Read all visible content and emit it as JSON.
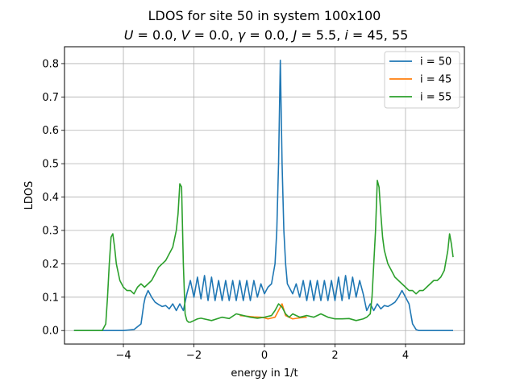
{
  "chart_data": {
    "type": "line",
    "title_line1": "LDOS for site 50 in system 100x100",
    "title_line2_parts": {
      "u_sym": "U",
      "u_val": " = 0.0, ",
      "v_sym": "V",
      "v_val": " = 0.0, ",
      "g_sym": "γ",
      "g_val": " = 0.0, ",
      "j_sym": "J",
      "j_val": " = 5.5, ",
      "i_sym": "i",
      "i_val": " = 45, 55"
    },
    "xlabel": "energy in 1/t",
    "ylabel": "LDOS",
    "xlim": [
      -5.67,
      5.67
    ],
    "ylim": [
      -0.0405,
      0.8505
    ],
    "xticks": [
      -4,
      -2,
      0,
      2,
      4
    ],
    "xtick_labels": [
      "−4",
      "−2",
      "0",
      "2",
      "4"
    ],
    "yticks": [
      0.0,
      0.1,
      0.2,
      0.3,
      0.4,
      0.5,
      0.6,
      0.7,
      0.8
    ],
    "ytick_labels": [
      "0.0",
      "0.1",
      "0.2",
      "0.3",
      "0.4",
      "0.5",
      "0.6",
      "0.7",
      "0.8"
    ],
    "grid": true,
    "legend_position": "top-right",
    "colors": {
      "i50": "#1f77b4",
      "i45": "#ff7f0e",
      "i55": "#2ca02c"
    },
    "series": [
      {
        "name": "i = 50",
        "color": "#1f77b4",
        "x": [
          -5.4,
          -4.0,
          -3.7,
          -3.5,
          -3.42,
          -3.38,
          -3.3,
          -3.2,
          -3.1,
          -3.0,
          -2.9,
          -2.8,
          -2.7,
          -2.6,
          -2.5,
          -2.4,
          -2.3,
          -2.2,
          -2.1,
          -2.0,
          -1.9,
          -1.8,
          -1.7,
          -1.6,
          -1.5,
          -1.4,
          -1.3,
          -1.2,
          -1.1,
          -1.0,
          -0.9,
          -0.8,
          -0.7,
          -0.6,
          -0.5,
          -0.4,
          -0.3,
          -0.2,
          -0.1,
          0.0,
          0.1,
          0.2,
          0.3,
          0.35,
          0.4,
          0.45,
          0.5,
          0.55,
          0.6,
          0.65,
          0.7,
          0.8,
          0.9,
          1.0,
          1.1,
          1.2,
          1.3,
          1.4,
          1.5,
          1.6,
          1.7,
          1.8,
          1.9,
          2.0,
          2.1,
          2.2,
          2.3,
          2.4,
          2.5,
          2.6,
          2.7,
          2.8,
          2.9,
          3.0,
          3.1,
          3.2,
          3.3,
          3.4,
          3.5,
          3.6,
          3.7,
          3.8,
          3.9,
          4.0,
          4.1,
          4.2,
          4.3,
          4.38,
          4.42,
          4.5,
          4.7,
          5.35
        ],
        "y": [
          0.0,
          0.0,
          0.003,
          0.02,
          0.08,
          0.1,
          0.12,
          0.1,
          0.085,
          0.078,
          0.072,
          0.075,
          0.065,
          0.08,
          0.06,
          0.08,
          0.06,
          0.11,
          0.15,
          0.1,
          0.16,
          0.095,
          0.165,
          0.09,
          0.16,
          0.09,
          0.15,
          0.09,
          0.15,
          0.09,
          0.15,
          0.09,
          0.15,
          0.09,
          0.15,
          0.09,
          0.15,
          0.1,
          0.14,
          0.11,
          0.13,
          0.14,
          0.2,
          0.3,
          0.5,
          0.81,
          0.5,
          0.3,
          0.2,
          0.14,
          0.13,
          0.11,
          0.14,
          0.1,
          0.15,
          0.09,
          0.15,
          0.09,
          0.15,
          0.09,
          0.15,
          0.09,
          0.15,
          0.09,
          0.16,
          0.09,
          0.165,
          0.095,
          0.16,
          0.1,
          0.15,
          0.11,
          0.06,
          0.08,
          0.06,
          0.08,
          0.065,
          0.075,
          0.072,
          0.078,
          0.085,
          0.1,
          0.12,
          0.1,
          0.08,
          0.02,
          0.003,
          0.0,
          0.0,
          0.0,
          0.0,
          0.0
        ]
      },
      {
        "name": "i = 45",
        "color": "#ff7f0e",
        "x": [
          -0.7,
          -0.5,
          -0.3,
          -0.1,
          0.0,
          0.1,
          0.3,
          0.5,
          0.6,
          0.8,
          1.0,
          1.2
        ],
        "y": [
          0.045,
          0.043,
          0.041,
          0.04,
          0.038,
          0.035,
          0.04,
          0.08,
          0.045,
          0.035,
          0.038,
          0.04
        ]
      },
      {
        "name": "i = 55",
        "color": "#2ca02c",
        "x": [
          -5.4,
          -4.6,
          -4.5,
          -4.45,
          -4.4,
          -4.35,
          -4.3,
          -4.25,
          -4.2,
          -4.1,
          -4.0,
          -3.9,
          -3.8,
          -3.7,
          -3.6,
          -3.5,
          -3.4,
          -3.3,
          -3.2,
          -3.1,
          -3.0,
          -2.9,
          -2.8,
          -2.7,
          -2.6,
          -2.5,
          -2.45,
          -2.4,
          -2.35,
          -2.3,
          -2.25,
          -2.2,
          -2.15,
          -2.1,
          -2.0,
          -1.9,
          -1.8,
          -1.5,
          -1.2,
          -1.0,
          -0.8,
          -0.6,
          -0.4,
          -0.2,
          0.0,
          0.2,
          0.3,
          0.4,
          0.5,
          0.6,
          0.7,
          0.8,
          1.0,
          1.2,
          1.4,
          1.6,
          1.8,
          2.0,
          2.2,
          2.4,
          2.6,
          2.8,
          2.9,
          3.0,
          3.05,
          3.1,
          3.15,
          3.2,
          3.25,
          3.3,
          3.35,
          3.4,
          3.45,
          3.5,
          3.6,
          3.7,
          3.8,
          3.9,
          4.0,
          4.1,
          4.2,
          4.3,
          4.4,
          4.5,
          4.6,
          4.7,
          4.8,
          4.9,
          5.0,
          5.1,
          5.2,
          5.25,
          5.3,
          5.35
        ],
        "y": [
          0.0,
          0.0,
          0.02,
          0.1,
          0.2,
          0.28,
          0.29,
          0.25,
          0.2,
          0.15,
          0.13,
          0.12,
          0.12,
          0.11,
          0.13,
          0.14,
          0.13,
          0.14,
          0.15,
          0.17,
          0.19,
          0.2,
          0.21,
          0.23,
          0.25,
          0.3,
          0.35,
          0.44,
          0.43,
          0.2,
          0.05,
          0.03,
          0.025,
          0.025,
          0.03,
          0.035,
          0.037,
          0.03,
          0.04,
          0.036,
          0.05,
          0.045,
          0.04,
          0.037,
          0.04,
          0.045,
          0.06,
          0.08,
          0.07,
          0.05,
          0.04,
          0.05,
          0.04,
          0.045,
          0.04,
          0.05,
          0.04,
          0.035,
          0.035,
          0.036,
          0.03,
          0.035,
          0.04,
          0.05,
          0.1,
          0.2,
          0.3,
          0.45,
          0.43,
          0.35,
          0.28,
          0.24,
          0.22,
          0.2,
          0.18,
          0.16,
          0.15,
          0.14,
          0.13,
          0.12,
          0.12,
          0.11,
          0.12,
          0.12,
          0.13,
          0.14,
          0.15,
          0.15,
          0.16,
          0.18,
          0.24,
          0.29,
          0.26,
          0.22
        ]
      }
    ]
  }
}
